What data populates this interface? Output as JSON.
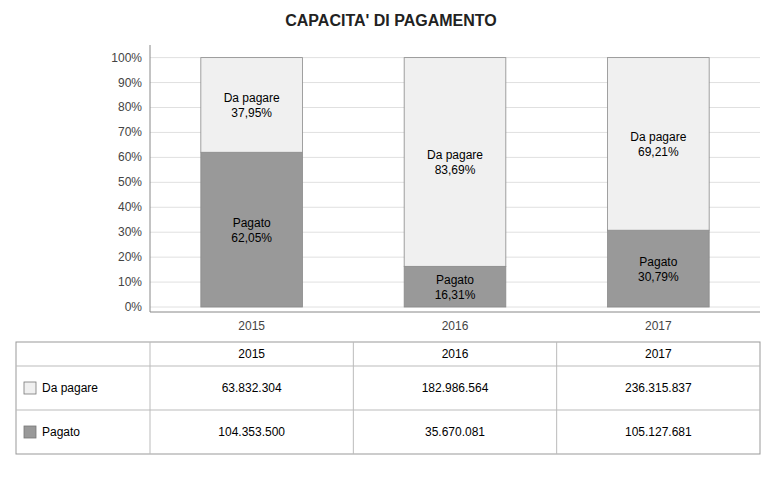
{
  "chart_data": {
    "type": "bar",
    "title": "CAPACITA' DI PAGAMENTO",
    "categories": [
      "2015",
      "2016",
      "2017"
    ],
    "stacked": true,
    "data_labels": true,
    "grid": true,
    "ylim": [
      -2,
      105.06
    ],
    "yticks": [
      {
        "value": 0,
        "label": "0%"
      },
      {
        "value": 10,
        "label": "10%"
      },
      {
        "value": 20,
        "label": "20%"
      },
      {
        "value": 30,
        "label": "30%"
      },
      {
        "value": 40,
        "label": "40%"
      },
      {
        "value": 50,
        "label": "50%"
      },
      {
        "value": 60,
        "label": "60%"
      },
      {
        "value": 70,
        "label": "70%"
      },
      {
        "value": 80,
        "label": "80%"
      },
      {
        "value": 90,
        "label": "90%"
      },
      {
        "value": 100,
        "label": "100%"
      }
    ],
    "series": [
      {
        "name": "Pagato",
        "color": "#999999",
        "values": [
          62.05,
          16.31,
          30.79
        ],
        "value_labels": [
          "62,05%",
          "16,31%",
          "30,79%"
        ],
        "amounts": [
          104353500,
          35670081,
          105127681
        ],
        "amount_labels": [
          "104.353.500",
          "35.670.081",
          "105.127.681"
        ]
      },
      {
        "name": "Da pagare",
        "color": "#f0f0f0",
        "values": [
          37.95,
          83.69,
          69.21
        ],
        "value_labels": [
          "37,95%",
          "83,69%",
          "69,21%"
        ],
        "amounts": [
          63832304,
          182986564,
          236315837
        ],
        "amount_labels": [
          "63.832.304",
          "182.986.564",
          "236.315.837"
        ]
      }
    ]
  }
}
